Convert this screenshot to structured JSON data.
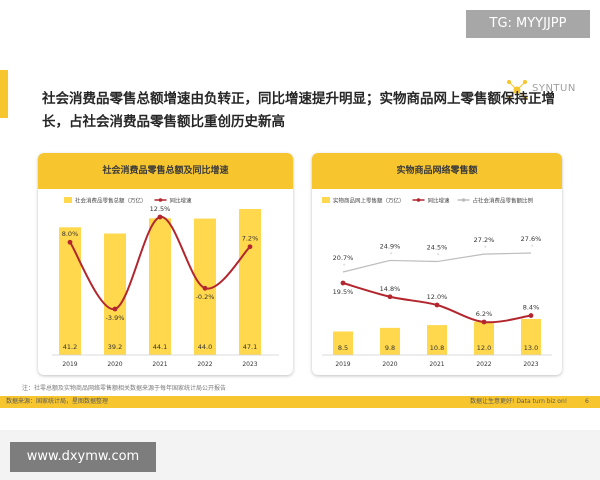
{
  "watermark_top": "TG: MYYJJPP",
  "logo_text": "SYNTUN",
  "headline": "社会消费品零售总额增速由负转正，同比增速提升明显；实物商品网上零售额保持正增长，占社会消费品零售额比重创历史新高",
  "note": "注：社零总额及实物商品网络零售额相关数据来源于每年国家统计局公开报告",
  "source": "数据来源：国家统计局，星图数据整理",
  "tagline": "数据让生意更好! Data turn biz on!",
  "page_number": "6",
  "watermark_bottom": "www.dxymw.com",
  "colors": {
    "accent": "#f7c62f",
    "bar": "#ffd84d",
    "line_red": "#b3262e",
    "line_gray": "#bdbdbd"
  },
  "chart_data": [
    {
      "type": "bar",
      "title": "社会消费品零售总额及同比增速",
      "categories": [
        "2019",
        "2020",
        "2021",
        "2022",
        "2023"
      ],
      "series": [
        {
          "name": "社会消费品零售总额（万亿）",
          "type": "bar",
          "values": [
            41.2,
            39.2,
            44.1,
            44.0,
            47.1
          ],
          "labels": [
            "41.2",
            "39.2",
            "44.1",
            "44.0",
            "47.1"
          ]
        },
        {
          "name": "同比增速",
          "type": "line",
          "values": [
            8.0,
            -3.9,
            12.5,
            -0.2,
            7.2
          ],
          "labels": [
            "8.0%",
            "-3.9%",
            "12.5%",
            "-0.2%",
            "7.2%"
          ]
        }
      ]
    },
    {
      "type": "bar",
      "title": "实物商品网络零售额",
      "categories": [
        "2019",
        "2020",
        "2021",
        "2022",
        "2023"
      ],
      "series": [
        {
          "name": "实物商品网上零售额（万亿）",
          "type": "bar",
          "values": [
            8.5,
            9.8,
            10.8,
            12.0,
            13.0
          ],
          "labels": [
            "8.5",
            "9.8",
            "10.8",
            "12.0",
            "13.0"
          ]
        },
        {
          "name": "同比增速",
          "type": "line",
          "values": [
            19.5,
            14.8,
            12.0,
            6.2,
            8.4
          ],
          "labels": [
            "19.5%",
            "14.8%",
            "12.0%",
            "6.2%",
            "8.4%"
          ]
        },
        {
          "name": "占社会消费品零售额比例",
          "type": "line",
          "values": [
            20.7,
            24.9,
            24.5,
            27.2,
            27.6
          ],
          "labels": [
            "20.7%",
            "24.9%",
            "24.5%",
            "27.2%",
            "27.6%"
          ]
        }
      ]
    }
  ]
}
